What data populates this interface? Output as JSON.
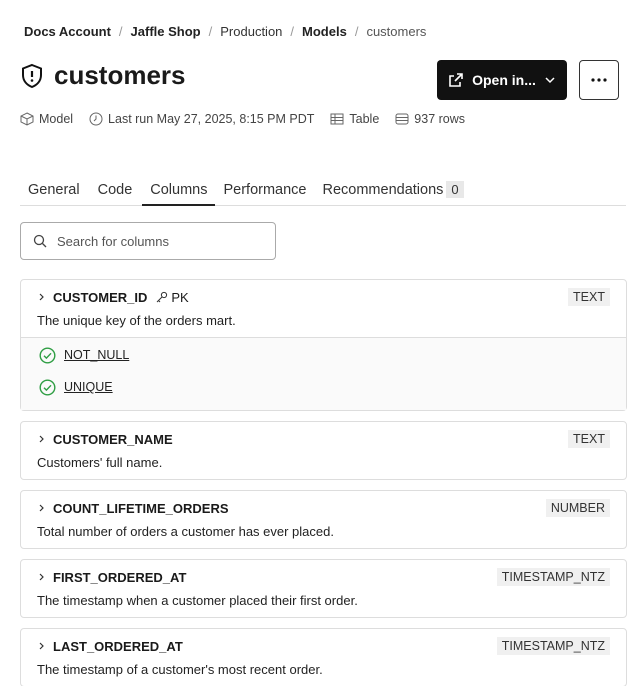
{
  "breadcrumb": [
    "Docs Account",
    "Jaffle Shop",
    "Production",
    "Models",
    "customers"
  ],
  "header": {
    "title": "customers",
    "open_button": "Open in..."
  },
  "meta": {
    "resource_type": "Model",
    "last_run": "Last run May 27, 2025, 8:15 PM PDT",
    "materialization": "Table",
    "rows": "937 rows"
  },
  "tabs": [
    "General",
    "Code",
    "Columns",
    "Performance",
    "Recommendations"
  ],
  "recommendations_count": 0,
  "search_placeholder": "Search for columns",
  "columns": [
    {
      "name": "CUSTOMER_ID",
      "key": "PK",
      "data_type": "TEXT",
      "description": "The unique key of the orders mart.",
      "tests": [
        "NOT_NULL",
        "UNIQUE"
      ]
    },
    {
      "name": "CUSTOMER_NAME",
      "data_type": "TEXT",
      "description": "Customers' full name."
    },
    {
      "name": "COUNT_LIFETIME_ORDERS",
      "data_type": "NUMBER",
      "description": "Total number of orders a customer has ever placed."
    },
    {
      "name": "FIRST_ORDERED_AT",
      "data_type": "TIMESTAMP_NTZ",
      "description": "The timestamp when a customer placed their first order."
    },
    {
      "name": "LAST_ORDERED_AT",
      "data_type": "TIMESTAMP_NTZ",
      "description": "The timestamp of a customer's most recent order."
    }
  ]
}
